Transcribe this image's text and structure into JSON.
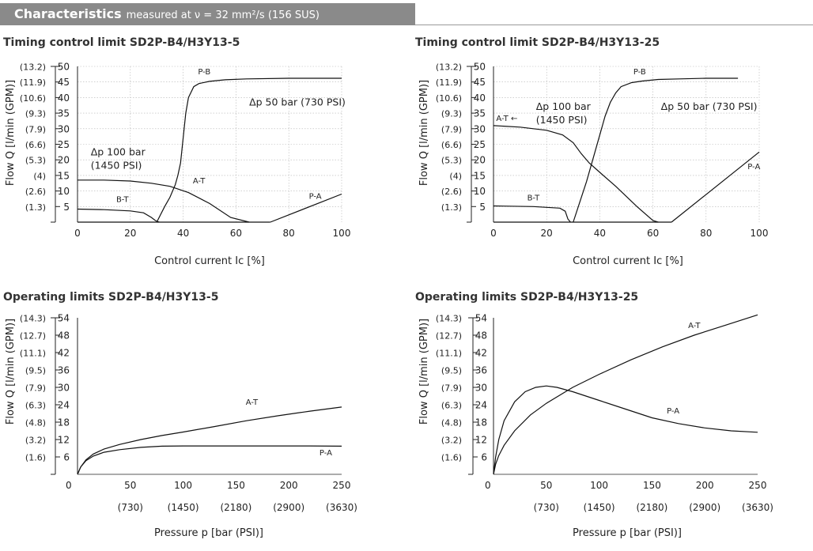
{
  "header": {
    "title": "Characteristics",
    "subtitle": "measured at ν = 32 mm²/s (156 SUS)",
    "color": "#8a8a8a"
  },
  "chart_data": [
    {
      "type": "line",
      "title": "Timing control limit SD2P-B4/H3Y13-5",
      "xlabel": "Control current Ic [%]",
      "ylabel": "Flow Q [l/min (GPM)]",
      "xlim": [
        0,
        100
      ],
      "ylim": [
        0,
        50
      ],
      "xticks": [
        0,
        20,
        40,
        60,
        80,
        100
      ],
      "yticks": [
        5,
        10,
        15,
        20,
        25,
        30,
        35,
        40,
        45,
        50
      ],
      "ygpm": [
        "(1.3)",
        "(2.6)",
        "(4)",
        "(5.3)",
        "(6.6)",
        "(7.9)",
        "(9.3)",
        "(10.6)",
        "(11.9)",
        "(13.2)"
      ],
      "grid": true,
      "annotations": [
        {
          "lines": [
            "Δp 100 bar",
            "(1450 PSI)"
          ],
          "x": 5,
          "y": 21.5
        },
        {
          "lines": [
            "Δp 50 bar (730 PSI)"
          ],
          "x": 65,
          "y": 37.5
        }
      ],
      "series": [
        {
          "name": "P-B",
          "label_pos": [
            48,
            47.5
          ],
          "x": [
            30,
            33,
            35,
            37,
            38,
            39,
            40,
            41,
            42,
            44,
            46,
            50,
            56,
            64,
            80,
            100
          ],
          "y": [
            0,
            5,
            8,
            12,
            15,
            19,
            27,
            35,
            40,
            43.5,
            44.5,
            45.2,
            45.7,
            46,
            46.2,
            46.2
          ]
        },
        {
          "name": "A-T",
          "label_pos": [
            46,
            12.5
          ],
          "x": [
            0,
            10,
            20,
            28,
            35,
            42,
            50,
            58,
            65
          ],
          "y": [
            13.5,
            13.5,
            13.2,
            12.5,
            11.5,
            9.5,
            6,
            1.5,
            0
          ]
        },
        {
          "name": "B-T",
          "label_pos": [
            17,
            6.5
          ],
          "x": [
            0,
            10,
            20,
            25,
            28,
            29.5,
            31
          ],
          "y": [
            4.2,
            4,
            3.6,
            3,
            1.5,
            0.5,
            0
          ]
        },
        {
          "name": "P-A",
          "label_pos": [
            90,
            7.5
          ],
          "x": [
            73,
            100
          ],
          "y": [
            0,
            9
          ]
        },
        {
          "name": "baseline",
          "x": [
            0,
            37,
            58,
            73
          ],
          "y": [
            0,
            0,
            0,
            0
          ]
        }
      ]
    },
    {
      "type": "line",
      "title": "Timing control limit SD2P-B4/H3Y13-25",
      "xlabel": "Control current Ic [%]",
      "ylabel": "Flow Q [l/min (GPM)]",
      "xlim": [
        0,
        100
      ],
      "ylim": [
        0,
        50
      ],
      "xticks": [
        0,
        20,
        40,
        60,
        80,
        100
      ],
      "yticks": [
        5,
        10,
        15,
        20,
        25,
        30,
        35,
        40,
        45,
        50
      ],
      "ygpm": [
        "(1.3)",
        "(2.6)",
        "(4)",
        "(5.3)",
        "(6.6)",
        "(7.9)",
        "(9.3)",
        "(10.6)",
        "(11.9)",
        "(13.2)"
      ],
      "grid": true,
      "annotations": [
        {
          "lines": [
            "Δp 100 bar",
            "(1450 PSI)"
          ],
          "x": 16,
          "y": 36
        },
        {
          "lines": [
            "Δp 50 bar (730 PSI)"
          ],
          "x": 63,
          "y": 36
        },
        {
          "lines": [
            "A-T ←"
          ],
          "x": 1,
          "y": 32.5,
          "small": true
        }
      ],
      "series": [
        {
          "name": "P-B",
          "label_pos": [
            55,
            47.5
          ],
          "x": [
            30,
            35,
            38,
            40,
            42,
            44,
            46,
            48,
            52,
            56,
            62,
            70,
            80,
            92
          ],
          "y": [
            0,
            13,
            22,
            28,
            34,
            38.5,
            41.5,
            43.5,
            44.8,
            45.3,
            45.8,
            46,
            46.2,
            46.2
          ]
        },
        {
          "name": "A-T",
          "label_pos": [
            0,
            0
          ],
          "x": [
            0,
            10,
            20,
            26,
            30,
            33,
            36,
            40,
            46,
            54,
            60,
            62
          ],
          "y": [
            31,
            30.5,
            29.5,
            28,
            25.5,
            22,
            19,
            16,
            11.5,
            5,
            0.5,
            0
          ]
        },
        {
          "name": "B-T",
          "label_pos": [
            15,
            7
          ],
          "x": [
            0,
            15,
            25,
            27,
            28,
            29
          ],
          "y": [
            5.2,
            5,
            4.5,
            3.5,
            1,
            0
          ]
        },
        {
          "name": "P-A",
          "label_pos": [
            98,
            17
          ],
          "x": [
            67,
            100
          ],
          "y": [
            0,
            22.5
          ]
        },
        {
          "name": "baseline",
          "x": [
            0,
            30,
            62,
            67
          ],
          "y": [
            0,
            0,
            0,
            0
          ]
        }
      ]
    },
    {
      "type": "line",
      "title": "Operating limits SD2P-B4/H3Y13-5",
      "xlabel": "Pressure p [bar (PSI)]",
      "ylabel": "Flow Q [l/min (GPM)]",
      "xlim": [
        0,
        250
      ],
      "ylim": [
        0,
        54
      ],
      "xticks": [
        50,
        100,
        150,
        200,
        250
      ],
      "xpsi": [
        "(730)",
        "(1450)",
        "(2180)",
        "(2900)",
        "(3630)"
      ],
      "zero_label": "0",
      "yticks": [
        6,
        12,
        18,
        24,
        30,
        36,
        42,
        48,
        54
      ],
      "ygpm": [
        "(1.6)",
        "(3.2)",
        "(4.8)",
        "(6.3)",
        "(7.9)",
        "(9.5)",
        "(11.1)",
        "(12.7)",
        "(14.3)"
      ],
      "grid": false,
      "series": [
        {
          "name": "A-T",
          "label_pos": [
            165,
            24
          ],
          "x": [
            0,
            3,
            8,
            15,
            25,
            40,
            60,
            80,
            100,
            130,
            160,
            190,
            220,
            250
          ],
          "y": [
            0,
            2.5,
            5,
            7,
            8.7,
            10.3,
            12,
            13.4,
            14.6,
            16.5,
            18.5,
            20.2,
            21.8,
            23.2
          ]
        },
        {
          "name": "P-A",
          "label_pos": [
            235,
            6.5
          ],
          "x": [
            0,
            3,
            8,
            15,
            25,
            40,
            60,
            80,
            100,
            130,
            160,
            190,
            220,
            250
          ],
          "y": [
            0,
            2.5,
            4.7,
            6.3,
            7.6,
            8.5,
            9.3,
            9.7,
            9.8,
            9.8,
            9.8,
            9.8,
            9.8,
            9.7
          ]
        }
      ]
    },
    {
      "type": "line",
      "title": "Operating limits SD2P-B4/H3Y13-25",
      "xlabel": "Pressure p [bar (PSI)]",
      "ylabel": "Flow Q [l/min (GPM)]",
      "xlim": [
        0,
        250
      ],
      "ylim": [
        0,
        54
      ],
      "xticks": [
        50,
        100,
        150,
        200,
        250
      ],
      "xpsi": [
        "(730)",
        "(1450)",
        "(2180)",
        "(2900)",
        "(3630)"
      ],
      "zero_label": "0",
      "yticks": [
        6,
        12,
        18,
        24,
        30,
        36,
        42,
        48,
        54
      ],
      "ygpm": [
        "(1.6)",
        "(3.2)",
        "(4.8)",
        "(6.3)",
        "(7.9)",
        "(9.5)",
        "(11.1)",
        "(12.7)",
        "(14.3)"
      ],
      "grid": false,
      "series": [
        {
          "name": "A-T",
          "label_pos": [
            190,
            50.5
          ],
          "x": [
            0,
            2,
            5,
            10,
            20,
            35,
            50,
            75,
            100,
            130,
            160,
            190,
            220,
            250
          ],
          "y": [
            0,
            3.5,
            6.5,
            10,
            15,
            20.5,
            24.5,
            30,
            34.5,
            39.5,
            44,
            48,
            51.5,
            55
          ]
        },
        {
          "name": "P-A",
          "label_pos": [
            170,
            21
          ],
          "x": [
            0,
            2,
            5,
            10,
            20,
            30,
            40,
            50,
            60,
            75,
            100,
            125,
            150,
            175,
            200,
            225,
            250
          ],
          "y": [
            0,
            6,
            12,
            18.5,
            25,
            28.5,
            30,
            30.5,
            30,
            28.5,
            25.5,
            22.5,
            19.5,
            17.5,
            16,
            15,
            14.5
          ]
        }
      ]
    }
  ]
}
